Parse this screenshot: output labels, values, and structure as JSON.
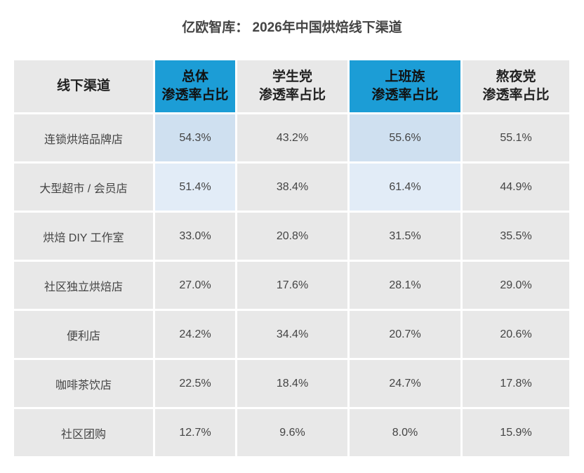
{
  "title": "亿欧智库： 2026年中国烘焙线下渠道",
  "table": {
    "header": [
      [
        "线下渠道"
      ],
      [
        "总体",
        "渗透率占比"
      ],
      [
        "学生党",
        "渗透率占比"
      ],
      [
        "上班族",
        "渗透率占比"
      ],
      [
        "熬夜党",
        "渗透率占比"
      ]
    ],
    "rows": [
      [
        "连锁烘焙品牌店",
        "54.3%",
        "43.2%",
        "55.6%",
        "55.1%"
      ],
      [
        "大型超市 / 会员店",
        "51.4%",
        "38.4%",
        "61.4%",
        "44.9%"
      ],
      [
        "烘焙 DIY 工作室",
        "33.0%",
        "20.8%",
        "31.5%",
        "35.5%"
      ],
      [
        "社区独立烘焙店",
        "27.0%",
        "17.6%",
        "28.1%",
        "29.0%"
      ],
      [
        "便利店",
        "24.2%",
        "34.4%",
        "20.7%",
        "20.6%"
      ],
      [
        "咖啡茶饮店",
        "22.5%",
        "18.4%",
        "24.7%",
        "17.8%"
      ],
      [
        "社区团购",
        "12.7%",
        "9.6%",
        "8.0%",
        "15.9%"
      ]
    ]
  }
}
